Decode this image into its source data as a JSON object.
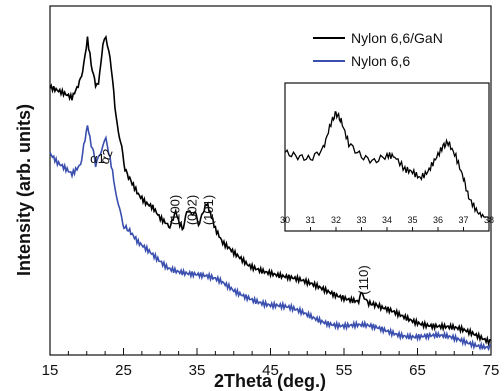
{
  "chart_data": {
    "type": "line",
    "xlabel": "2Theta (deg.)",
    "ylabel": "Intensity (arb. units)",
    "xlim": [
      15,
      75
    ],
    "x_ticks": [
      "15",
      "25",
      "35",
      "45",
      "55",
      "65",
      "75"
    ],
    "y_ticks_labeled": false,
    "legend": {
      "placement": "top-right",
      "entries": [
        {
          "label": "Nylon 6,6/GaN",
          "color": "#000000"
        },
        {
          "label": "Nylon 6,6",
          "color": "#3a4fae"
        }
      ]
    },
    "series": [
      {
        "name": "Nylon 6,6/GaN",
        "color": "#000000",
        "x": [
          15.0,
          16.0,
          17.0,
          18.0,
          19.0,
          19.6,
          20.1,
          20.6,
          21.2,
          21.6,
          22.2,
          22.6,
          23.0,
          23.5,
          24.0,
          24.6,
          25.2,
          26.0,
          27.0,
          28.0,
          29.0,
          30.0,
          31.0,
          31.6,
          32.1,
          32.5,
          33.0,
          33.6,
          34.0,
          34.6,
          35.2,
          35.8,
          36.3,
          36.8,
          37.5,
          38.5,
          40.0,
          42.0,
          45.0,
          50.0,
          55.0,
          57.0,
          57.6,
          58.2,
          60.0,
          65.0,
          70.0,
          75.0
        ],
        "y": [
          64,
          63,
          62,
          61,
          64,
          69,
          74,
          69,
          63,
          64,
          72,
          74,
          72,
          66,
          58,
          52,
          48,
          45,
          42,
          40,
          39,
          37,
          36,
          37,
          39,
          37,
          36,
          38,
          39,
          38,
          37,
          38,
          40,
          38,
          35,
          32,
          30,
          28,
          27,
          24,
          22,
          21,
          22,
          21,
          19,
          17,
          15,
          13
        ]
      },
      {
        "name": "Nylon 6,6",
        "color": "#3a4fae",
        "x": [
          15.0,
          16.0,
          17.0,
          18.0,
          19.0,
          19.6,
          20.1,
          20.6,
          21.2,
          21.6,
          22.2,
          22.6,
          23.0,
          23.5,
          24.0,
          24.6,
          25.2,
          26.0,
          27.0,
          28.0,
          29.0,
          30.0,
          31.0,
          32.0,
          33.0,
          34.0,
          35.0,
          36.0,
          37.0,
          38.0,
          40.0,
          42.0,
          45.0,
          50.0,
          55.0,
          60.0,
          65.0,
          70.0,
          75.0
        ],
        "y": [
          50,
          48,
          47,
          46,
          48,
          52,
          56,
          52,
          48,
          49,
          52,
          53,
          51,
          47,
          42,
          38,
          36,
          34,
          32,
          31,
          30,
          29,
          28,
          27.5,
          27,
          26.5,
          26,
          25.5,
          25,
          24.5,
          23,
          22,
          20,
          18,
          16,
          15,
          14,
          13,
          12
        ]
      }
    ],
    "annotations": [
      {
        "text": "α1",
        "x": 20.1,
        "color": "#3a4fae"
      },
      {
        "text": "α2",
        "x": 22.4,
        "color": "#3a4fae"
      },
      {
        "text": "(100)",
        "x": 32.1,
        "color": "#000000"
      },
      {
        "text": "(002)",
        "x": 34.4,
        "color": "#000000"
      },
      {
        "text": "(101)",
        "x": 36.6,
        "color": "#000000"
      },
      {
        "text": "(110)",
        "x": 57.7,
        "color": "#000000"
      }
    ],
    "inset": {
      "xlim": [
        30,
        38
      ],
      "x_ticks": [
        "30",
        "31",
        "32",
        "33",
        "34",
        "35",
        "36",
        "37",
        "38"
      ],
      "series": {
        "name": "Nylon 6,6/GaN",
        "color": "#000000",
        "x": [
          30.0,
          30.5,
          31.0,
          31.5,
          31.8,
          32.0,
          32.2,
          32.5,
          33.0,
          33.5,
          34.0,
          34.3,
          34.7,
          35.0,
          35.3,
          35.6,
          35.9,
          36.2,
          36.4,
          36.7,
          37.0,
          37.2,
          37.5,
          37.8,
          38.0
        ],
        "y": [
          0.55,
          0.52,
          0.5,
          0.58,
          0.78,
          0.86,
          0.8,
          0.62,
          0.52,
          0.48,
          0.53,
          0.52,
          0.42,
          0.4,
          0.35,
          0.4,
          0.5,
          0.6,
          0.63,
          0.52,
          0.35,
          0.2,
          0.1,
          0.03,
          0.0
        ]
      }
    }
  }
}
